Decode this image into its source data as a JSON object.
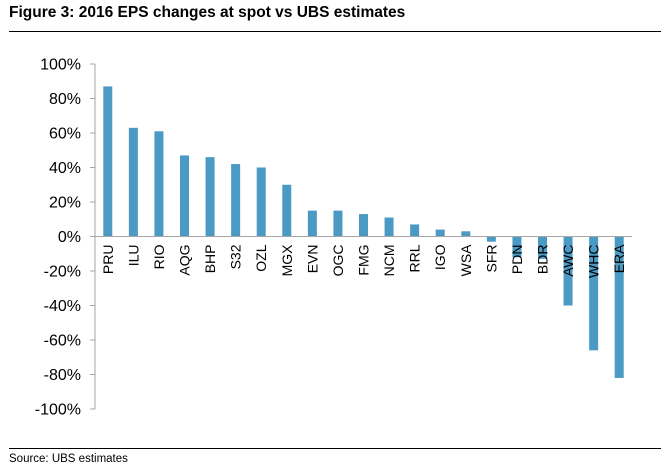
{
  "header": {
    "title": "Figure 3: 2016 EPS changes at spot vs UBS estimates"
  },
  "footer": {
    "source": "Source: UBS estimates"
  },
  "chart_data": {
    "type": "bar",
    "title": "",
    "xlabel": "",
    "ylabel": "",
    "ylim": [
      -100,
      100
    ],
    "ytick_values": [
      100,
      80,
      60,
      40,
      20,
      0,
      -20,
      -40,
      -60,
      -80,
      -100
    ],
    "ytick_labels": [
      "100%",
      "80%",
      "60%",
      "40%",
      "20%",
      "0%",
      "-20%",
      "-40%",
      "-60%",
      "-80%",
      "-100%"
    ],
    "categories": [
      "PRU",
      "ILU",
      "RIO",
      "AQG",
      "BHP",
      "S32",
      "OZL",
      "MGX",
      "EVN",
      "OGC",
      "FMG",
      "NCM",
      "RRL",
      "IGO",
      "WSA",
      "SFR",
      "PDN",
      "BDR",
      "AWC",
      "WHC",
      "ERA"
    ],
    "values": [
      87,
      63,
      61,
      47,
      46,
      42,
      40,
      30,
      15,
      15,
      13,
      11,
      7,
      4,
      3,
      -3,
      -12,
      -13,
      -40,
      -66,
      -82
    ],
    "bar_color": "#4a9ac4",
    "grid": false,
    "legend": "none"
  }
}
